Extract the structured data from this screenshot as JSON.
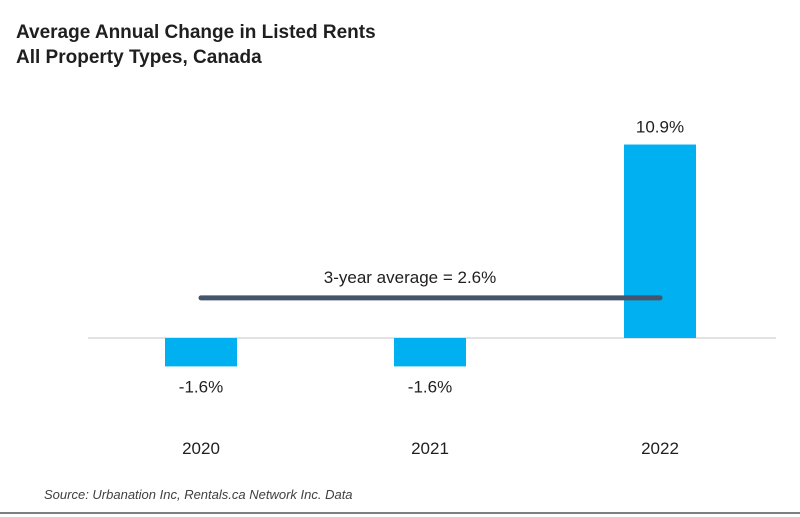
{
  "chart_data": {
    "type": "bar",
    "title": "Average Annual Change in Listed Rents",
    "subtitle": "All Property Types, Canada",
    "categories": [
      "2020",
      "2021",
      "2022"
    ],
    "values": [
      -1.6,
      -1.6,
      10.9
    ],
    "value_labels": [
      "-1.6%",
      "-1.6%",
      "10.9%"
    ],
    "bar_color": "#00b0f0",
    "reference_line": {
      "label": "3-year average = 2.6%",
      "value": 2.6,
      "color": "#44546a"
    },
    "grid": false,
    "legend": "none"
  },
  "source": "Source: Urbanation Inc, Rentals.ca Network Inc. Data"
}
